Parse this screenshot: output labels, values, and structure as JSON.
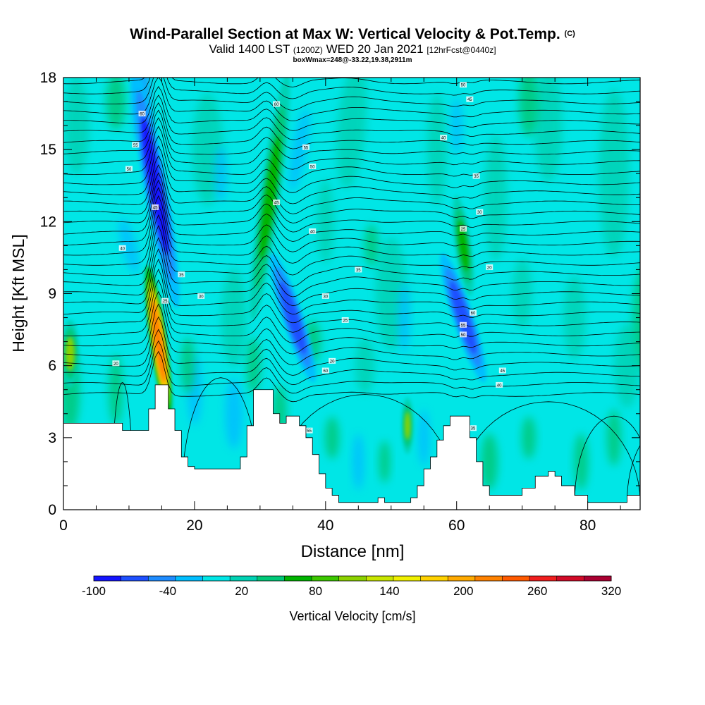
{
  "chart_data": {
    "type": "heatmap",
    "title": "Wind-Parallel Section at Max W: Vertical Velocity & Pot.Temp.",
    "title_suffix": "(C)",
    "subtitle_main": "Valid 1400 LST",
    "subtitle_z": "(1200Z)",
    "subtitle_date": "WED 20 Jan 2021",
    "subtitle_fcst": "[12hrFcst@0440z]",
    "subtitle2": "boxWmax=248@-33.22,19.38,2911m",
    "xlabel": "Distance [nm]",
    "ylabel": "Height [Kft MSL]",
    "xlim": [
      0,
      88
    ],
    "ylim": [
      0,
      18
    ],
    "xticks": [
      "0",
      "20",
      "40",
      "60",
      "80"
    ],
    "yticks": [
      "0",
      "3",
      "6",
      "9",
      "12",
      "15",
      "18"
    ],
    "colorbar": {
      "label": "Vertical Velocity [cm/s]",
      "tick_labels": [
        "-100",
        "-40",
        "20",
        "80",
        "140",
        "200",
        "260",
        "320"
      ],
      "range": [
        -100,
        320
      ],
      "colors": [
        "#1414ff",
        "#1e50ff",
        "#1e8cff",
        "#00beff",
        "#00e6e6",
        "#00d2b4",
        "#00c878",
        "#00b400",
        "#3cc800",
        "#8cd200",
        "#c8e600",
        "#f0f000",
        "#ffd200",
        "#ffaa00",
        "#ff8200",
        "#ff5a00",
        "#f01e1e",
        "#d20a28",
        "#aa0032"
      ]
    },
    "terrain_kft": [
      [
        0,
        3.6
      ],
      [
        8,
        3.6
      ],
      [
        9,
        3.3
      ],
      [
        12,
        3.3
      ],
      [
        13,
        4.2
      ],
      [
        14,
        5.2
      ],
      [
        15,
        5.2
      ],
      [
        16,
        4.2
      ],
      [
        17,
        3.3
      ],
      [
        18,
        2.2
      ],
      [
        19,
        1.8
      ],
      [
        20,
        1.7
      ],
      [
        26,
        1.7
      ],
      [
        27,
        2.2
      ],
      [
        28,
        3.5
      ],
      [
        29,
        5.0
      ],
      [
        31,
        5.0
      ],
      [
        32,
        4.0
      ],
      [
        33,
        3.6
      ],
      [
        34,
        3.9
      ],
      [
        35,
        3.9
      ],
      [
        36,
        3.5
      ],
      [
        37,
        3.0
      ],
      [
        38,
        2.3
      ],
      [
        39,
        1.5
      ],
      [
        40,
        0.9
      ],
      [
        41,
        0.6
      ],
      [
        42,
        0.3
      ],
      [
        47,
        0.3
      ],
      [
        48,
        0.5
      ],
      [
        49,
        0.3
      ],
      [
        53,
        0.5
      ],
      [
        54,
        1.0
      ],
      [
        55,
        1.7
      ],
      [
        56,
        2.2
      ],
      [
        57,
        2.9
      ],
      [
        58,
        3.5
      ],
      [
        59,
        3.9
      ],
      [
        61,
        3.9
      ],
      [
        62,
        3.0
      ],
      [
        63,
        2.0
      ],
      [
        64,
        1.0
      ],
      [
        65,
        0.6
      ],
      [
        70,
        0.9
      ],
      [
        72,
        1.4
      ],
      [
        74,
        1.6
      ],
      [
        75,
        1.4
      ],
      [
        76,
        1.0
      ],
      [
        78,
        0.6
      ],
      [
        80,
        0.3
      ],
      [
        85,
        0.3
      ],
      [
        86,
        0.6
      ],
      [
        88,
        0.6
      ]
    ],
    "velocity_features": [
      {
        "x": 14.5,
        "y": 7.0,
        "value": 248
      },
      {
        "x": 14.0,
        "y": 13.5,
        "value": -90
      },
      {
        "x": 31.5,
        "y": 13.0,
        "value": 80
      },
      {
        "x": 35.0,
        "y": 8.0,
        "value": -70
      },
      {
        "x": 61.0,
        "y": 8.0,
        "value": -70
      },
      {
        "x": 61.0,
        "y": 11.0,
        "value": 90
      },
      {
        "x": 1.0,
        "y": 6.5,
        "value": 140
      },
      {
        "x": 52.5,
        "y": 3.5,
        "value": 130
      }
    ],
    "isentrope_labels": [
      "20",
      "25",
      "30",
      "35",
      "40",
      "45",
      "50",
      "55",
      "60"
    ]
  }
}
